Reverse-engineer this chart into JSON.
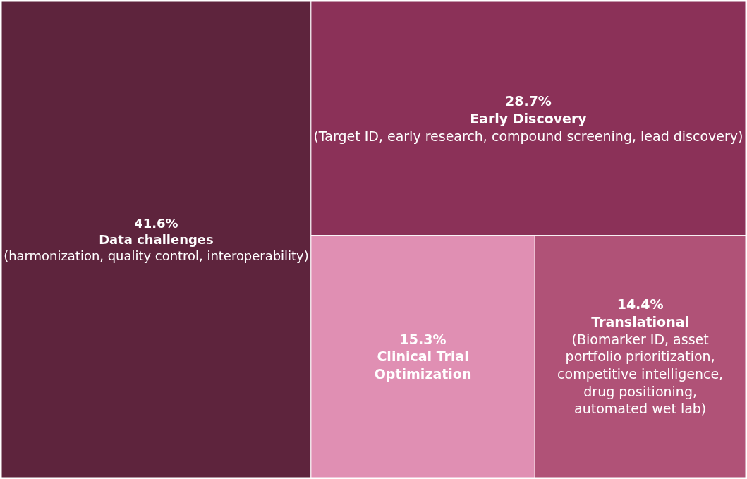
{
  "chart_data": {
    "type": "other",
    "categories": [
      "Data challenges\n(harmonization, quality control, interoperability)",
      "Early Discovery\n(Target ID, early research, compound screening, lead discovery)",
      "Clinical Trial\nOptimization",
      "Translational\n(Biomarker ID, asset\nportfolio prioritization,\ncompetitive intelligence,\ndrug positioning,\nautomated wet lab)"
    ],
    "values": [
      41.6,
      28.7,
      15.3,
      14.4
    ],
    "value_labels": [
      "41.6%",
      "28.7%",
      "15.3%",
      "14.4%"
    ],
    "colors": [
      "#5e243d",
      "#8b3158",
      "#e08fb3",
      "#b05277"
    ]
  }
}
